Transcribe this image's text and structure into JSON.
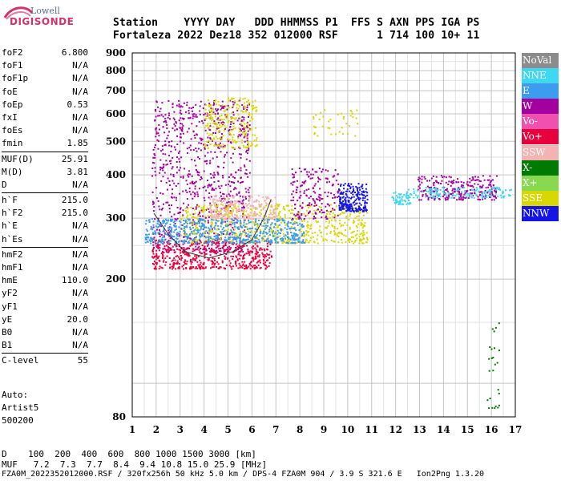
{
  "logo": {
    "top": "Lowell",
    "main": "DIGISONDE"
  },
  "header": {
    "line1": "Station    YYYY DAY   DDD HHMMSS P1  FFS S AXN PPS IGA PS",
    "line2": "Fortaleza 2022 Dez18 352 012000 RSF      1 714 100 10+ 11"
  },
  "params": [
    {
      "name": "foF2",
      "value": "6.800"
    },
    {
      "name": "foF1",
      "value": "N/A"
    },
    {
      "name": "foF1p",
      "value": "N/A"
    },
    {
      "name": "foE",
      "value": "N/A"
    },
    {
      "name": "foEp",
      "value": "0.53"
    },
    {
      "name": "fxI",
      "value": "N/A"
    },
    {
      "name": "foEs",
      "value": "N/A"
    },
    {
      "name": "fmin",
      "value": "1.85"
    },
    {
      "sep": true
    },
    {
      "name": "MUF(D)",
      "value": "25.91"
    },
    {
      "name": "M(D)",
      "value": "3.81"
    },
    {
      "name": "D",
      "value": "N/A"
    },
    {
      "sep": true
    },
    {
      "name": "h`F",
      "value": "215.0"
    },
    {
      "name": "h`F2",
      "value": "215.0"
    },
    {
      "name": "h`E",
      "value": "N/A"
    },
    {
      "name": "h`Es",
      "value": "N/A"
    },
    {
      "sep": true
    },
    {
      "name": "hmF2",
      "value": "N/A"
    },
    {
      "name": "hmF1",
      "value": "N/A"
    },
    {
      "name": "hmE",
      "value": "110.0"
    },
    {
      "name": "yF2",
      "value": "N/A"
    },
    {
      "name": "yF1",
      "value": "N/A"
    },
    {
      "name": "yE",
      "value": "20.0"
    },
    {
      "name": "B0",
      "value": "N/A"
    },
    {
      "name": "B1",
      "value": "N/A"
    },
    {
      "sep": true
    },
    {
      "name": "C-level",
      "value": "55"
    }
  ],
  "auto": {
    "line1": "Auto:",
    "line2": "Artist5",
    "line3": "500200"
  },
  "legend": [
    {
      "label": "NoVal",
      "color": "#8c8c8c"
    },
    {
      "label": "NNE",
      "color": "#3fd8f0"
    },
    {
      "label": "E",
      "color": "#3b9cf0"
    },
    {
      "label": "W",
      "color": "#a3009f"
    },
    {
      "label": "Vo-",
      "color": "#f050b0"
    },
    {
      "label": "Vo+",
      "color": "#e8003c"
    },
    {
      "label": "SSW",
      "color": "#f4b2b2"
    },
    {
      "label": "X-",
      "color": "#007a00"
    },
    {
      "label": "X+",
      "color": "#88d850"
    },
    {
      "label": "SSE",
      "color": "#d8d800"
    },
    {
      "label": "NNW",
      "color": "#1414e6"
    }
  ],
  "bottom": {
    "row_d": "D    100  200  400  600  800 1000 1500 3000 [km]",
    "row_muf": "MUF   7.2  7.3  7.7  8.4  9.4 10.8 15.0 25.9 [MHz]",
    "footer": "FZA0M_2022352012000.RSF / 320fx256h 50 kHz 5.0 km / DPS-4 FZA0M 904 / 3.9 S 321.6 E   Ion2Png 1.3.20"
  },
  "chart_data": {
    "type": "scatter",
    "xlim": [
      1,
      17
    ],
    "ylim": [
      80,
      900
    ],
    "y_scale": "log",
    "x_ticks": [
      1,
      2,
      3,
      4,
      5,
      6,
      7,
      8,
      9,
      10,
      11,
      12,
      13,
      14,
      15,
      16,
      17
    ],
    "y_ticks": [
      80,
      200,
      300,
      400,
      500,
      600,
      700,
      800,
      900
    ],
    "grid": true,
    "legend_position": "right",
    "clusters": [
      {
        "color": "#a3009f",
        "x": [
          1.8,
          5.9
        ],
        "y": [
          240,
          660
        ],
        "count": 900
      },
      {
        "color": "#d8d800",
        "x": [
          4.0,
          6.2
        ],
        "y": [
          480,
          670
        ],
        "count": 240
      },
      {
        "color": "#d8d800",
        "x": [
          3.0,
          10.8
        ],
        "y": [
          255,
          330
        ],
        "count": 700
      },
      {
        "color": "#f4b2b2",
        "x": [
          4.2,
          7.0
        ],
        "y": [
          300,
          350
        ],
        "count": 240
      },
      {
        "color": "#e8003c",
        "x": [
          1.8,
          6.8
        ],
        "y": [
          215,
          260
        ],
        "count": 520
      },
      {
        "color": "#3b9cf0",
        "x": [
          1.5,
          8.2
        ],
        "y": [
          255,
          300
        ],
        "count": 620
      },
      {
        "color": "#1414e6",
        "x": [
          9.6,
          10.8
        ],
        "y": [
          315,
          380
        ],
        "count": 220
      },
      {
        "color": "#3fd8f0",
        "x": [
          11.8,
          12.6
        ],
        "y": [
          330,
          360
        ],
        "count": 60
      },
      {
        "color": "#a3009f",
        "x": [
          12.9,
          16.2
        ],
        "y": [
          340,
          400
        ],
        "count": 260
      },
      {
        "color": "#3fd8f0",
        "x": [
          12.5,
          16.8
        ],
        "y": [
          345,
          370
        ],
        "count": 140
      },
      {
        "color": "#a3009f",
        "x": [
          7.6,
          9.6
        ],
        "y": [
          300,
          420
        ],
        "count": 180
      },
      {
        "color": "#d8d800",
        "x": [
          8.5,
          10.4
        ],
        "y": [
          520,
          620
        ],
        "count": 40
      },
      {
        "color": "#007a00",
        "x": [
          15.8,
          16.3
        ],
        "y": [
          85,
          150
        ],
        "count": 25
      }
    ],
    "trace": [
      [
        1.9,
        310
      ],
      [
        2.5,
        270
      ],
      [
        3.2,
        240
      ],
      [
        4.2,
        230
      ],
      [
        5.2,
        240
      ],
      [
        6.0,
        260
      ],
      [
        6.5,
        300
      ],
      [
        6.8,
        340
      ]
    ]
  }
}
